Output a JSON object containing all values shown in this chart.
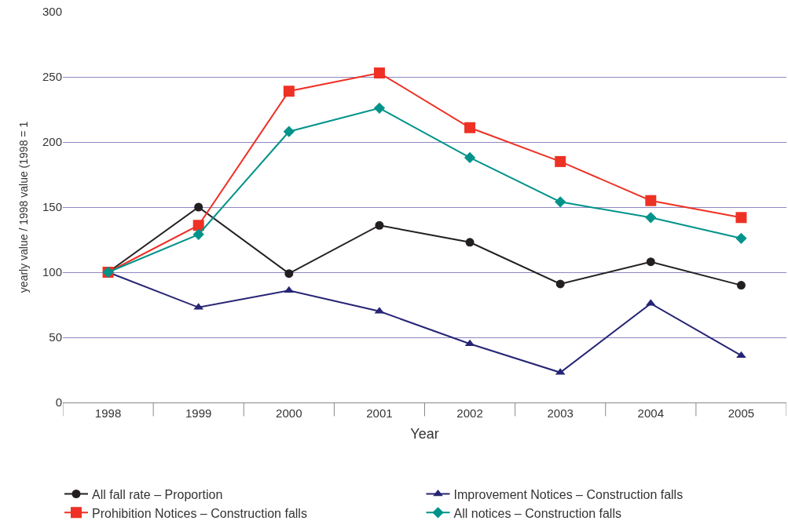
{
  "chart_data": {
    "type": "line",
    "xlabel": "Year",
    "ylabel": "yearly value / 1998 value (1998 = 1",
    "categories": [
      "1998",
      "1999",
      "2000",
      "2001",
      "2002",
      "2003",
      "2004",
      "2005"
    ],
    "series": [
      {
        "name": "All fall rate – Proportion",
        "color": "#231f20",
        "marker": "circle",
        "values": [
          100,
          150,
          99,
          136,
          123,
          91,
          108,
          90
        ]
      },
      {
        "name": "Improvement Notices – Construction falls",
        "color": "#262474",
        "marker": "triangle",
        "values": [
          100,
          73,
          86,
          70,
          45,
          23,
          76,
          36
        ]
      },
      {
        "name": "Prohibition Notices – Construction falls",
        "color": "#ee3124",
        "marker": "square",
        "values": [
          100,
          136,
          239,
          253,
          211,
          185,
          155,
          142
        ]
      },
      {
        "name": "All notices – Construction falls",
        "color": "#00938a",
        "marker": "diamond",
        "values": [
          100,
          129,
          208,
          226,
          188,
          154,
          142,
          126
        ]
      }
    ],
    "ylim": [
      0,
      300
    ],
    "yticks": [
      0,
      50,
      100,
      150,
      200,
      250,
      300
    ],
    "grid": "y",
    "legend": "bottom"
  }
}
